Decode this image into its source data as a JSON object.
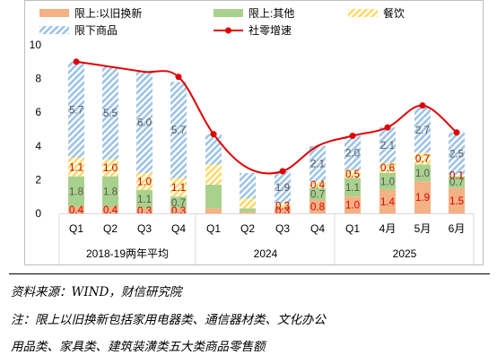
{
  "colors": {
    "trade_in": "#f4b183",
    "other": "#a9d18e",
    "catering": "#ffd966",
    "restricted": "#bdd7ee",
    "growth": "#e00000",
    "frame": "#bfbfbf"
  },
  "chart_data": {
    "type": "bar",
    "stacked": true,
    "ylim": [
      0,
      10
    ],
    "yticks": [
      "0",
      "2",
      "4",
      "6",
      "8",
      "10"
    ],
    "grid": false,
    "legend_position": "top",
    "categories": [
      "Q1",
      "Q2",
      "Q3",
      "Q4",
      "Q1",
      "Q2",
      "Q3",
      "Q4",
      "Q1",
      "4月",
      "5月",
      "6月"
    ],
    "groups": [
      {
        "label": "2018-19两年平均",
        "count": 4
      },
      {
        "label": "2024",
        "count": 4
      },
      {
        "label": "2025",
        "count": 4
      }
    ],
    "series": [
      {
        "name": "限上:以旧换新",
        "key": "trade_in",
        "values": [
          0.4,
          0.4,
          0.3,
          0.3,
          0.3,
          0.1,
          0.3,
          0.8,
          1.0,
          1.4,
          1.9,
          1.5
        ],
        "labels": [
          "0.4",
          "0.4",
          "0.3",
          "0.3",
          "",
          "",
          "0.3",
          "0.8",
          "1.0",
          "1.4",
          "1.9",
          "1.5"
        ]
      },
      {
        "name": "限上:其他",
        "key": "other",
        "values": [
          1.8,
          1.8,
          1.1,
          0.7,
          1.4,
          0.2,
          0.0,
          0.7,
          1.1,
          1.0,
          1.0,
          0.7
        ],
        "labels": [
          "1.8",
          "1.8",
          "1.1",
          "0.7",
          "",
          "",
          "",
          "0.7",
          "1.1",
          "1.0",
          "1.0",
          "0.7"
        ]
      },
      {
        "name": "餐饮",
        "key": "catering",
        "values": [
          1.1,
          1.0,
          1.0,
          1.1,
          1.2,
          0.6,
          0.3,
          0.4,
          0.5,
          0.6,
          0.7,
          0.1
        ],
        "labels": [
          "1.1",
          "1.0",
          "1.0",
          "1.1",
          "",
          "",
          "0.3",
          "0.4",
          "0.5",
          "0.6",
          "0.7",
          "0.1"
        ]
      },
      {
        "name": "限下商品",
        "key": "restricted",
        "values": [
          5.7,
          5.5,
          6.0,
          5.7,
          1.8,
          1.5,
          1.9,
          2.1,
          2.0,
          2.1,
          2.7,
          2.5
        ],
        "labels": [
          "5.7",
          "5.5",
          "6.0",
          "5.7",
          "",
          "",
          "1.9",
          "2.1",
          "2.0",
          "2.1",
          "2.7",
          "2.5"
        ]
      }
    ],
    "line": {
      "name": "社零增速",
      "values": [
        9.0,
        8.7,
        8.4,
        8.1,
        4.7,
        2.7,
        2.5,
        4.0,
        4.6,
        5.1,
        6.4,
        4.8
      ]
    }
  },
  "footer": {
    "source": "资料来源：WIND，财信研究院",
    "note_line1": "注：限上以旧换新包括家用电器类、通信器材类、文化办公",
    "note_line2": "用品类、家具类、建筑装潢类五大类商品零售额"
  }
}
